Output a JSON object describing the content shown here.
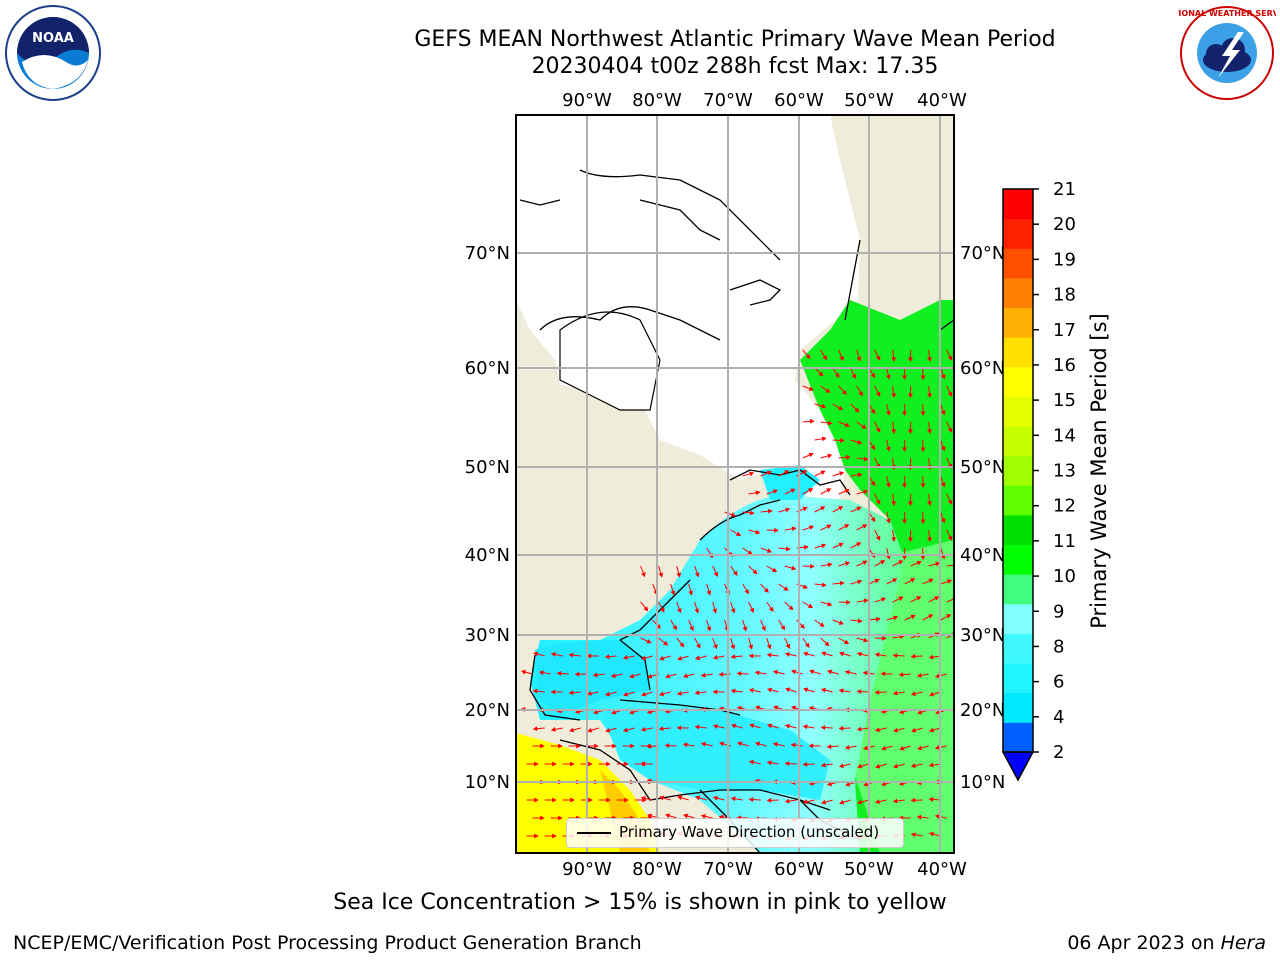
{
  "title": {
    "line1": "GEFS MEAN Northwest Atlantic Primary Wave Mean Period",
    "line2": "20230404 t00z 288h fcst   Max: 17.35"
  },
  "logos": {
    "noaa": {
      "text": "NOAA",
      "icon": "noaa-seal-icon"
    },
    "nws": {
      "text": "NATIONAL WEATHER SERVICE",
      "icon": "nws-seal-icon"
    }
  },
  "map": {
    "lon_labels": [
      "90°W",
      "80°W",
      "70°W",
      "60°W",
      "50°W",
      "40°W"
    ],
    "lat_labels": [
      "70°N",
      "60°N",
      "50°N",
      "40°N",
      "30°N",
      "20°N",
      "10°N"
    ],
    "legend_label": "Primary Wave Direction (unscaled)",
    "colors": {
      "land": "#efedda",
      "grid": "#b0b0b0",
      "arrow": "#ff0000"
    }
  },
  "colorbar": {
    "label": "Primary Wave Mean Period [s]",
    "ticks": [
      "2",
      "4",
      "6",
      "8",
      "9",
      "10",
      "11",
      "12",
      "13",
      "14",
      "15",
      "16",
      "17",
      "18",
      "19",
      "20",
      "21"
    ],
    "colors": [
      "#0060ff",
      "#00e8ff",
      "#20f4ff",
      "#40f8ff",
      "#80ffff",
      "#40ff80",
      "#00ff00",
      "#00e000",
      "#60ff00",
      "#a0ff00",
      "#c8ff00",
      "#e8ff00",
      "#ffff00",
      "#ffe000",
      "#ffb000",
      "#ff8000",
      "#ff5000",
      "#ff2000",
      "#ff0000"
    ],
    "extend_color": "#0000ff"
  },
  "notes": {
    "ice": "Sea Ice Concentration > 15% is shown in pink to yellow"
  },
  "footer": {
    "left": "NCEP/EMC/Verification Post Processing Product Generation Branch",
    "date": "06 Apr 2023 on ",
    "machine": "Hera"
  }
}
